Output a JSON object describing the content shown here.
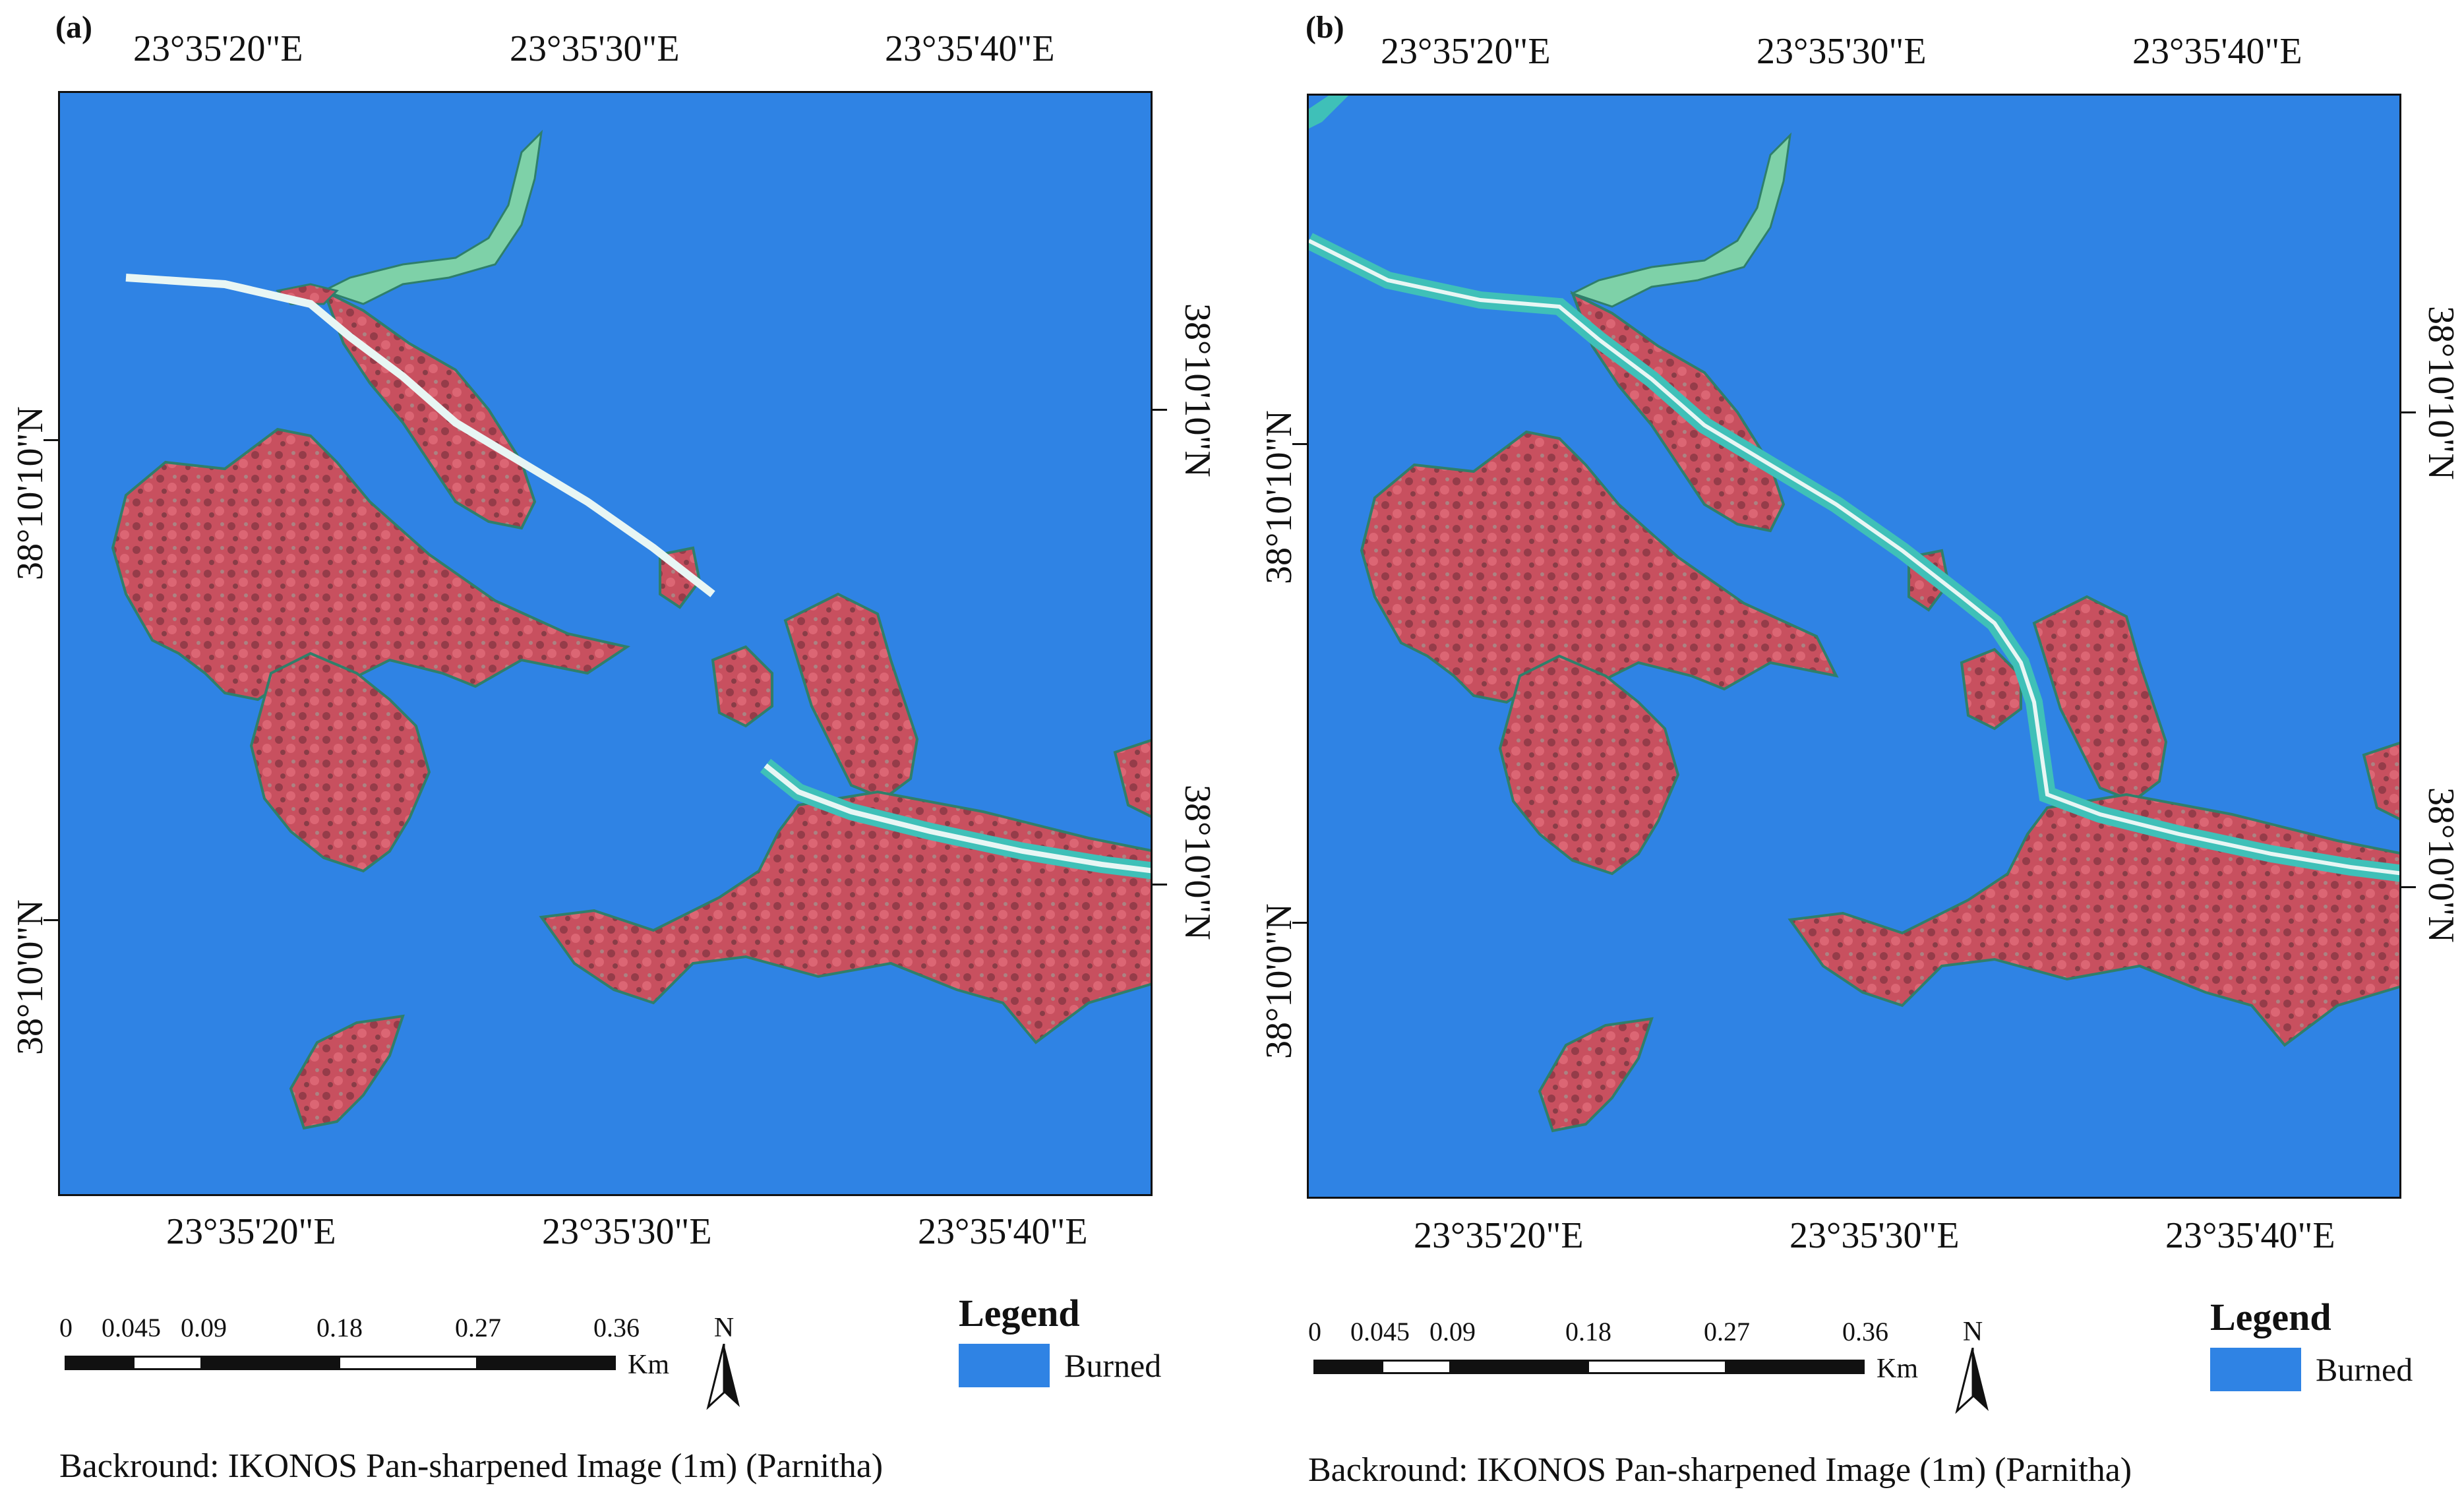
{
  "panels": [
    {
      "id": "a",
      "label": "(a)",
      "top_lon_ticks": [
        "23°35'20\"E",
        "23°35'30\"E",
        "23°35'40\"E"
      ],
      "bottom_lon_ticks": [
        "23°35'20\"E",
        "23°35'30\"E",
        "23°35'40\"E"
      ],
      "left_lat_ticks": [
        "38°10'10\"N",
        "38°10'0\"N"
      ],
      "right_lat_ticks": [
        "38°10'10\"N",
        "38°10'0\"N"
      ],
      "scale_values": [
        "0",
        "0.045",
        "0.09",
        "0.18",
        "0.27",
        "0.36"
      ],
      "scale_unit": "Km",
      "north_label": "N",
      "legend_title": "Legend",
      "legend_item": "Burned",
      "caption": "Backround: IKONOS Pan-sharpened Image (1m) (Parnitha)"
    },
    {
      "id": "b",
      "label": "(b)",
      "top_lon_ticks": [
        "23°35'20\"E",
        "23°35'30\"E",
        "23°35'40\"E"
      ],
      "bottom_lon_ticks": [
        "23°35'20\"E",
        "23°35'30\"E",
        "23°35'40\"E"
      ],
      "left_lat_ticks": [
        "38°10'10\"N",
        "38°10'0\"N"
      ],
      "right_lat_ticks": [
        "38°10'10\"N",
        "38°10'0\"N"
      ],
      "scale_values": [
        "0",
        "0.045",
        "0.09",
        "0.18",
        "0.27",
        "0.36"
      ],
      "scale_unit": "Km",
      "north_label": "N",
      "legend_title": "Legend",
      "legend_item": "Burned",
      "caption": "Backround: IKONOS Pan-sharpened Image (1m) (Parnitha)"
    }
  ],
  "colors": {
    "burned": "#2f83e4",
    "vegetation": "#c8505f",
    "road": "#3fc0b8",
    "road_highlight": "#e8f6f4"
  }
}
